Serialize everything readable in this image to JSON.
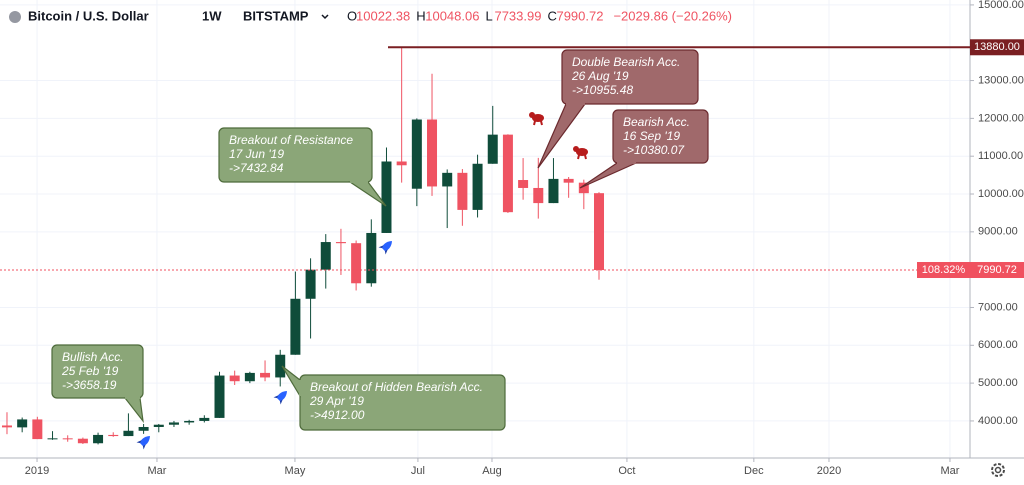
{
  "header": {
    "symbol": "Bitcoin / U.S. Dollar",
    "interval": "1W",
    "exchange": "BITSTAMP",
    "ohlc": [
      {
        "label": "O",
        "value": "10022.38"
      },
      {
        "label": "H",
        "value": "10048.06"
      },
      {
        "label": "L",
        "value": "7733.99"
      },
      {
        "label": "C",
        "value": "7990.72"
      }
    ],
    "change": "−2029.86 (−20.26%)"
  },
  "chart_data": {
    "type": "candlestick",
    "x": [
      0,
      1,
      2,
      3,
      4,
      5,
      6,
      7,
      8,
      9,
      10,
      11,
      12,
      13,
      14,
      15,
      16,
      17,
      18,
      19,
      20,
      21,
      22,
      23,
      24,
      25,
      26,
      27,
      28,
      29,
      30,
      31,
      32,
      33,
      34,
      35,
      36,
      37,
      38,
      39
    ],
    "open": [
      3880,
      3830,
      4040,
      3520,
      3540,
      3530,
      3410,
      3630,
      3600,
      3740,
      3840,
      3900,
      3960,
      4000,
      4080,
      5200,
      5050,
      5270,
      5150,
      5750,
      7230,
      8000,
      8730,
      8700,
      7640,
      8970,
      10860,
      10140,
      11970,
      10200,
      10560,
      9580,
      10800,
      11570,
      10370,
      10160,
      9760,
      10400,
      10300,
      10022.38
    ],
    "high": [
      4230,
      4090,
      4110,
      3730,
      3620,
      3560,
      3690,
      3700,
      4200,
      3920,
      3920,
      4000,
      4030,
      4150,
      5300,
      5330,
      5300,
      5600,
      5880,
      7950,
      8300,
      8940,
      9080,
      8770,
      9330,
      11230,
      13880,
      12000,
      13180,
      10650,
      10660,
      11040,
      12330,
      11580,
      10950,
      10955.48,
      10950,
      10450,
      10380.07,
      10048.06
    ],
    "low": [
      3650,
      3700,
      3520,
      3500,
      3450,
      3390,
      3380,
      3580,
      3600,
      3658.19,
      3700,
      3840,
      3900,
      3960,
      4080,
      4950,
      5000,
      5050,
      4912,
      5750,
      6180,
      7500,
      7860,
      7450,
      7550,
      8970,
      10300,
      9680,
      9950,
      9100,
      9160,
      9380,
      10800,
      9500,
      9850,
      9350,
      9760,
      9900,
      9600,
      7733.99
    ],
    "close": [
      3830,
      4040,
      3520,
      3540,
      3530,
      3410,
      3630,
      3600,
      3740,
      3840,
      3900,
      3960,
      4000,
      4080,
      5200,
      5050,
      5270,
      5150,
      5750,
      7230,
      8000,
      8730,
      8700,
      7640,
      8970,
      10860,
      10760,
      11970,
      10200,
      10560,
      9580,
      10800,
      11570,
      9520,
      10160,
      9760,
      10400,
      10300,
      10022.38,
      7990.72
    ],
    "up_color": "#0f4c3a",
    "down_color": "#ef5362",
    "xlim": [
      -0.46,
      63.44
    ],
    "xticks": [
      {
        "value": 1.98,
        "label": "2019"
      },
      {
        "value": 9.88,
        "label": "Mar"
      },
      {
        "value": 18.97,
        "label": "May"
      },
      {
        "value": 27.07,
        "label": "Jul"
      },
      {
        "value": 31.95,
        "label": "Aug"
      },
      {
        "value": 40.84,
        "label": "Oct"
      },
      {
        "value": 49.2,
        "label": "Dec"
      },
      {
        "value": 54.15,
        "label": "2020"
      },
      {
        "value": 62.12,
        "label": "Mar"
      }
    ],
    "ylim": [
      3020,
      15130
    ],
    "yticks": [
      {
        "value": 4000,
        "label": "4000.00"
      },
      {
        "value": 5000,
        "label": "5000.00"
      },
      {
        "value": 6000,
        "label": "6000.00"
      },
      {
        "value": 7000,
        "label": "7000.00"
      },
      {
        "value": 9000,
        "label": "9000.00"
      },
      {
        "value": 10000,
        "label": "10000.00"
      },
      {
        "value": 11000,
        "label": "11000.00"
      },
      {
        "value": 12000,
        "label": "12000.00"
      },
      {
        "value": 13000,
        "label": "13000.00"
      },
      {
        "value": 15000,
        "label": "15000.00"
      }
    ],
    "grid": true,
    "level": {
      "value": 13880,
      "label": "13880.00",
      "color": "#7a1f22"
    },
    "price_line": {
      "value": 7990.72,
      "label": "7990.72",
      "change_label": "108.32%",
      "color": "#f0515f"
    },
    "annotations": [
      {
        "lines": [
          "Bullish Acc.",
          "25 Feb '19",
          "->3658.19"
        ],
        "fill": "#8ba678",
        "border": "#4e6b3b"
      },
      {
        "lines": [
          "Breakout of Resistance",
          "17 Jun '19",
          "->7432.84"
        ],
        "fill": "#8ba678",
        "border": "#4e6b3b"
      },
      {
        "lines": [
          "Breakout of Hidden Bearish Acc.",
          "29 Apr '19",
          "->4912.00"
        ],
        "fill": "#8ba678",
        "border": "#4e6b3b"
      },
      {
        "lines": [
          "Double Bearish Acc.",
          "26 Aug '19",
          "->10955.48"
        ],
        "fill": "#a0696b",
        "border": "#6b2a2e"
      },
      {
        "lines": [
          "Bearish Acc.",
          "16 Sep '19",
          "->10380.07"
        ],
        "fill": "#a0696b",
        "border": "#6b2a2e"
      }
    ]
  }
}
